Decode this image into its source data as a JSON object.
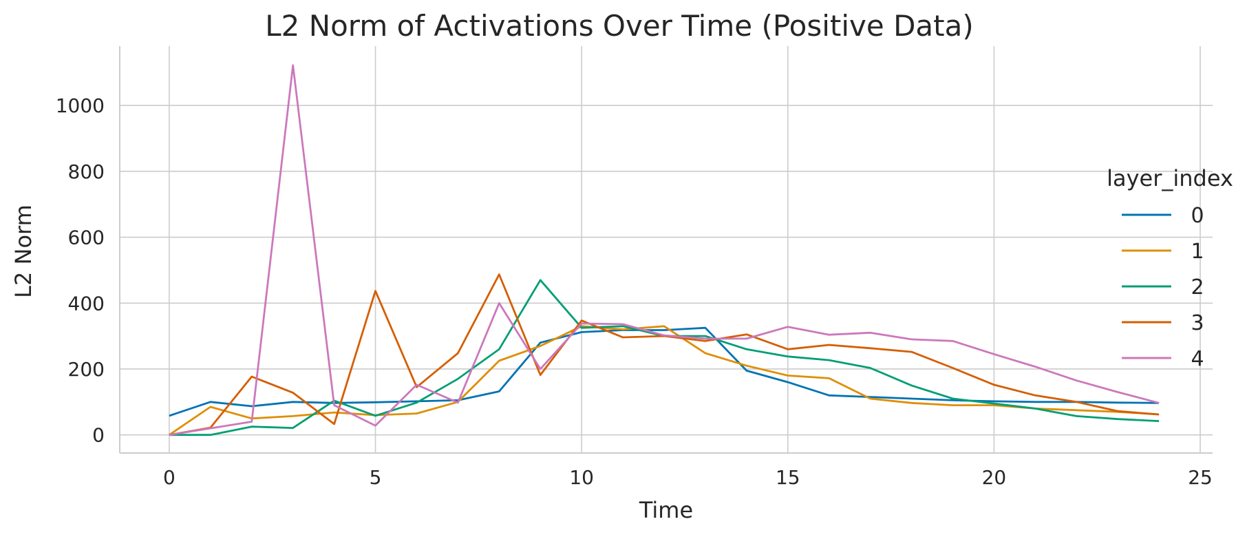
{
  "chart_data": {
    "type": "line",
    "title": "L2 Norm of Activations Over Time (Positive Data)",
    "xlabel": "Time",
    "ylabel": "L2 Norm",
    "xlim": [
      -1.2,
      25.3
    ],
    "ylim": [
      -55,
      1180
    ],
    "xticks": [
      0,
      5,
      10,
      15,
      20,
      25
    ],
    "yticks": [
      0,
      200,
      400,
      600,
      800,
      1000
    ],
    "grid": true,
    "legend": {
      "title": "layer_index",
      "placement": "right"
    },
    "x": [
      0,
      1,
      2,
      3,
      4,
      5,
      6,
      7,
      8,
      9,
      10,
      11,
      12,
      13,
      14,
      15,
      16,
      17,
      18,
      19,
      20,
      21,
      22,
      23,
      24
    ],
    "series": [
      {
        "name": "0",
        "color": "#0173b2",
        "values": [
          58,
          100,
          87,
          100,
          97,
          99,
          102,
          105,
          132,
          280,
          312,
          318,
          318,
          325,
          195,
          160,
          120,
          115,
          110,
          105,
          102,
          100,
          100,
          98,
          97
        ]
      },
      {
        "name": "1",
        "color": "#de8f05",
        "values": [
          0,
          85,
          50,
          57,
          68,
          60,
          65,
          100,
          225,
          270,
          330,
          320,
          330,
          248,
          210,
          180,
          172,
          110,
          97,
          90,
          90,
          80,
          75,
          70,
          62
        ]
      },
      {
        "name": "2",
        "color": "#029e73",
        "values": [
          0,
          0,
          25,
          21,
          104,
          58,
          98,
          170,
          260,
          470,
          325,
          330,
          300,
          300,
          260,
          238,
          227,
          203,
          150,
          110,
          95,
          80,
          57,
          48,
          42
        ]
      },
      {
        "name": "3",
        "color": "#d55e00",
        "values": [
          0,
          22,
          177,
          128,
          33,
          437,
          145,
          248,
          487,
          182,
          347,
          296,
          300,
          285,
          305,
          260,
          273,
          263,
          252,
          203,
          152,
          120,
          100,
          72,
          62
        ]
      },
      {
        "name": "4",
        "color": "#cc78bc",
        "values": [
          0,
          20,
          40,
          1122,
          90,
          28,
          152,
          98,
          400,
          200,
          338,
          336,
          302,
          292,
          292,
          328,
          304,
          310,
          290,
          285,
          245,
          207,
          165,
          130,
          97
        ]
      }
    ]
  }
}
